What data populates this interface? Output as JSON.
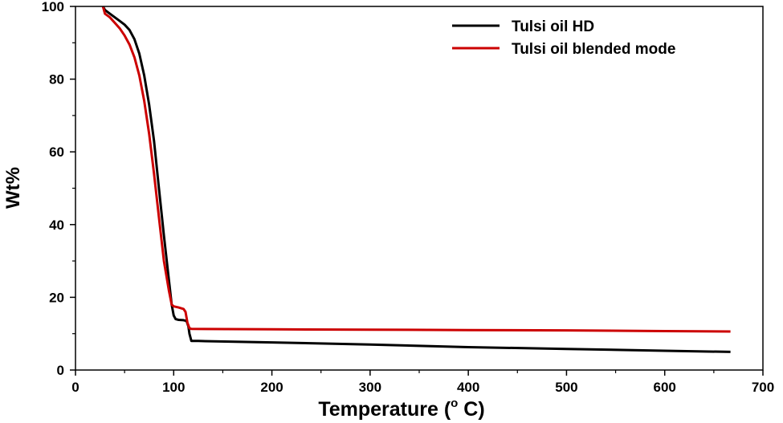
{
  "chart_data": {
    "type": "line",
    "title": "",
    "xlabel": "Temperature (",
    "xlabel_sup": "o",
    "xlabel_end": " C)",
    "ylabel": "Wt%",
    "xlim": [
      0,
      700
    ],
    "ylim": [
      0,
      100
    ],
    "x_ticks": [
      0,
      100,
      200,
      300,
      400,
      500,
      600,
      700
    ],
    "y_ticks": [
      0,
      20,
      40,
      60,
      80,
      100
    ],
    "x_tick_labels": [
      "0",
      "100",
      "200",
      "300",
      "400",
      "500",
      "600",
      "700"
    ],
    "y_tick_labels": [
      "0",
      "20",
      "40",
      "60",
      "80",
      "100"
    ],
    "grid": false,
    "legend": "top-right",
    "series": [
      {
        "name": "Tulsi oil HD",
        "color": "#000000",
        "points": [
          [
            28,
            100
          ],
          [
            30,
            99
          ],
          [
            35,
            98
          ],
          [
            40,
            97
          ],
          [
            45,
            96
          ],
          [
            50,
            95
          ],
          [
            55,
            93.5
          ],
          [
            60,
            91
          ],
          [
            65,
            87
          ],
          [
            70,
            81
          ],
          [
            75,
            73
          ],
          [
            80,
            63
          ],
          [
            85,
            50
          ],
          [
            90,
            37
          ],
          [
            95,
            25
          ],
          [
            98,
            18
          ],
          [
            100,
            15
          ],
          [
            102,
            14
          ],
          [
            105,
            13.8
          ],
          [
            110,
            13.7
          ],
          [
            113,
            13.5
          ],
          [
            115,
            12
          ],
          [
            116,
            10
          ],
          [
            118,
            8
          ],
          [
            125,
            8
          ],
          [
            200,
            7.6
          ],
          [
            300,
            7
          ],
          [
            400,
            6.3
          ],
          [
            500,
            5.8
          ],
          [
            600,
            5.3
          ],
          [
            667,
            5
          ]
        ]
      },
      {
        "name": "Tulsi oil blended mode",
        "color": "#cc0000",
        "points": [
          [
            28,
            100
          ],
          [
            30,
            98
          ],
          [
            35,
            97
          ],
          [
            40,
            95.5
          ],
          [
            45,
            94
          ],
          [
            50,
            92
          ],
          [
            55,
            89.5
          ],
          [
            60,
            86
          ],
          [
            65,
            81
          ],
          [
            70,
            74
          ],
          [
            75,
            65
          ],
          [
            80,
            54
          ],
          [
            85,
            42
          ],
          [
            90,
            30
          ],
          [
            95,
            22
          ],
          [
            98,
            18
          ],
          [
            100,
            17.5
          ],
          [
            105,
            17.2
          ],
          [
            110,
            16.8
          ],
          [
            112,
            16
          ],
          [
            114,
            13
          ],
          [
            116,
            11.5
          ],
          [
            118,
            11.3
          ],
          [
            200,
            11.2
          ],
          [
            300,
            11.1
          ],
          [
            400,
            11
          ],
          [
            500,
            10.9
          ],
          [
            600,
            10.7
          ],
          [
            667,
            10.6
          ]
        ]
      }
    ]
  }
}
